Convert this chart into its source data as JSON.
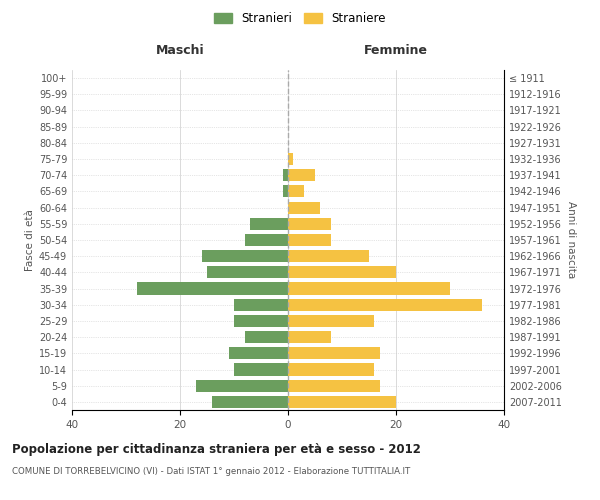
{
  "age_groups": [
    "0-4",
    "5-9",
    "10-14",
    "15-19",
    "20-24",
    "25-29",
    "30-34",
    "35-39",
    "40-44",
    "45-49",
    "50-54",
    "55-59",
    "60-64",
    "65-69",
    "70-74",
    "75-79",
    "80-84",
    "85-89",
    "90-94",
    "95-99",
    "100+"
  ],
  "birth_years": [
    "2007-2011",
    "2002-2006",
    "1997-2001",
    "1992-1996",
    "1987-1991",
    "1982-1986",
    "1977-1981",
    "1972-1976",
    "1967-1971",
    "1962-1966",
    "1957-1961",
    "1952-1956",
    "1947-1951",
    "1942-1946",
    "1937-1941",
    "1932-1936",
    "1927-1931",
    "1922-1926",
    "1917-1921",
    "1912-1916",
    "≤ 1911"
  ],
  "maschi": [
    14,
    17,
    10,
    11,
    8,
    10,
    10,
    28,
    15,
    16,
    8,
    7,
    0,
    1,
    1,
    0,
    0,
    0,
    0,
    0,
    0
  ],
  "femmine": [
    20,
    17,
    16,
    17,
    8,
    16,
    36,
    30,
    20,
    15,
    8,
    8,
    6,
    3,
    5,
    1,
    0,
    0,
    0,
    0,
    0
  ],
  "maschi_color": "#6b9e5e",
  "femmine_color": "#f5c242",
  "background_color": "#ffffff",
  "grid_color": "#cccccc",
  "title": "Popolazione per cittadinanza straniera per età e sesso - 2012",
  "subtitle": "COMUNE DI TORREBELVICINO (VI) - Dati ISTAT 1° gennaio 2012 - Elaborazione TUTTITALIA.IT",
  "xlabel_left": "Maschi",
  "xlabel_right": "Femmine",
  "ylabel_left": "Fasce di età",
  "ylabel_right": "Anni di nascita",
  "legend_maschi": "Stranieri",
  "legend_femmine": "Straniere",
  "xlim": 40,
  "bar_height": 0.75
}
